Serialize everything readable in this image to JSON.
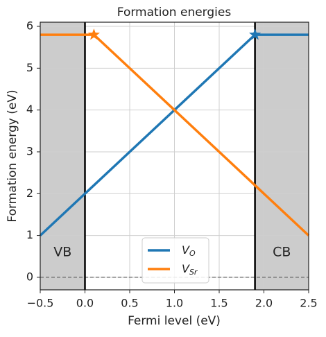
{
  "chart_data": {
    "type": "line",
    "title": "Formation energies",
    "xlabel": "Fermi level (eV)",
    "ylabel": "Formation energy (eV)",
    "xlim": [
      -0.5,
      2.5
    ],
    "ylim": [
      -0.3,
      6.1
    ],
    "xticks": [
      {
        "value": -0.5,
        "label": "−0.5"
      },
      {
        "value": 0,
        "label": "0.0"
      },
      0.5,
      {
        "value": 1,
        "label": "1.0"
      },
      1.5,
      {
        "value": 2,
        "label": "2.0"
      },
      2.5
    ],
    "yticks": [
      0,
      1,
      2,
      3,
      4,
      5,
      6
    ],
    "grid": true,
    "legend": "lower center",
    "regions": [
      {
        "label": "VB",
        "x": [
          -0.5,
          0
        ],
        "color": "#cccccc"
      },
      {
        "label": "CB",
        "x": [
          1.9,
          2.5
        ],
        "color": "#cccccc"
      }
    ],
    "vlines": [
      0,
      1.9
    ],
    "hline": 0,
    "series": [
      {
        "name": "V",
        "subscript": "O",
        "color": "#1f77b4",
        "x": [
          -0.5,
          1.9,
          2.5
        ],
        "values": [
          1,
          5.8,
          5.8
        ],
        "star": {
          "x": 1.9,
          "y": 5.8
        }
      },
      {
        "name": "V",
        "subscript": "Sr",
        "color": "#ff7f0e",
        "x": [
          -0.5,
          0.1,
          2.5
        ],
        "values": [
          5.8,
          5.8,
          1
        ],
        "star": {
          "x": 0.1,
          "y": 5.8
        }
      }
    ]
  }
}
